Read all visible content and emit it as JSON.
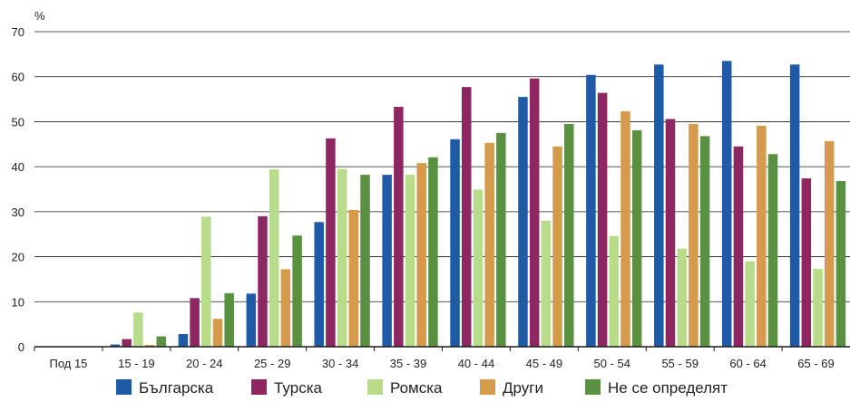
{
  "chart_data": {
    "type": "bar",
    "y_unit_label": "%",
    "ylim": [
      0,
      70
    ],
    "yticks": [
      0,
      10,
      20,
      30,
      40,
      50,
      60,
      70
    ],
    "grid": true,
    "legend_position": "bottom",
    "categories": [
      "Под  15",
      "15 - 19",
      "20 - 24",
      "25 - 29",
      "30 - 34",
      "35 - 39",
      "40 - 44",
      "45 - 49",
      "50 - 54",
      "55 - 59",
      "60 - 64",
      "65 - 69"
    ],
    "series": [
      {
        "name": "Българска",
        "color": "#1f5aa6",
        "values": [
          0,
          0.5,
          2.8,
          11.8,
          27.7,
          38.2,
          46.1,
          55.5,
          60.4,
          62.7,
          63.5,
          62.7
        ]
      },
      {
        "name": "Турска",
        "color": "#8e2761",
        "values": [
          0,
          1.7,
          10.8,
          29.0,
          46.3,
          53.3,
          57.7,
          59.6,
          56.4,
          50.6,
          44.5,
          37.4
        ]
      },
      {
        "name": "Ромска",
        "color": "#b8dc8a",
        "values": [
          0.1,
          7.6,
          28.9,
          39.4,
          39.5,
          38.2,
          34.9,
          28.0,
          24.6,
          21.8,
          19.0,
          17.3
        ]
      },
      {
        "name": "Други",
        "color": "#d59a4c",
        "values": [
          0,
          0.4,
          6.2,
          17.2,
          30.4,
          40.8,
          45.3,
          44.5,
          52.3,
          49.5,
          49.1,
          45.7
        ]
      },
      {
        "name": "Не се определят",
        "color": "#5a9140",
        "values": [
          0,
          2.3,
          11.9,
          24.7,
          38.2,
          42.1,
          47.5,
          49.5,
          48.1,
          46.8,
          42.8,
          36.8
        ]
      }
    ]
  }
}
